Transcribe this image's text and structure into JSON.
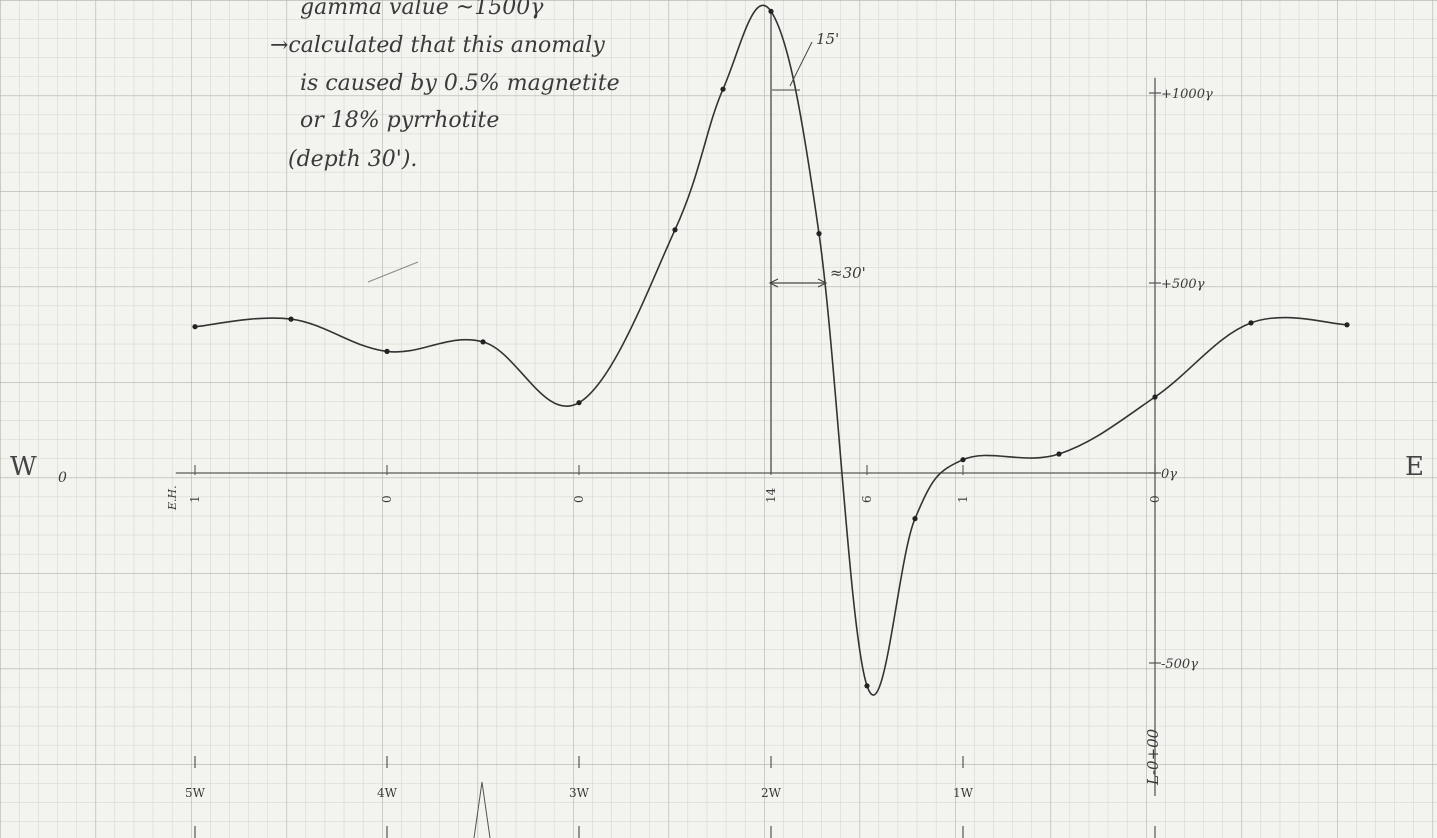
{
  "chart_data": {
    "type": "line",
    "direction_labels": {
      "west": "W",
      "east": "E",
      "origin_mark": "0"
    },
    "y_scale_labels": [
      "+1000γ",
      "+500γ",
      "0γ",
      "-500γ"
    ],
    "y_tick_values": [
      1000,
      500,
      0,
      -500
    ],
    "station_labels": [
      "5W",
      "4W",
      "3W",
      "2W",
      "1W"
    ],
    "station_positions": [
      -5,
      -4,
      -3,
      -2,
      -1
    ],
    "line_label": "L-0+00",
    "marker_label": "E.H.",
    "ylim": [
      -700,
      1250
    ],
    "xlim": [
      -6,
      2.5
    ],
    "axis_readings": [
      {
        "x": -5,
        "label": "1"
      },
      {
        "x": -4,
        "label": "0"
      },
      {
        "x": -3,
        "label": "0"
      },
      {
        "x": -2,
        "label": "14"
      },
      {
        "x": -1.5,
        "label": "6"
      },
      {
        "x": -1,
        "label": "1"
      },
      {
        "x": 0,
        "label": "0"
      }
    ],
    "series": [
      {
        "values": [
          {
            "x": -5.0,
            "y": 385
          },
          {
            "x": -4.5,
            "y": 405
          },
          {
            "x": -4.0,
            "y": 320
          },
          {
            "x": -3.5,
            "y": 345
          },
          {
            "x": -3.0,
            "y": 185
          },
          {
            "x": -2.5,
            "y": 640
          },
          {
            "x": -2.25,
            "y": 1010
          },
          {
            "x": -2.0,
            "y": 1215
          },
          {
            "x": -1.75,
            "y": 630
          },
          {
            "x": -1.5,
            "y": -560
          },
          {
            "x": -1.25,
            "y": -120
          },
          {
            "x": -1.0,
            "y": 35
          },
          {
            "x": -0.5,
            "y": 50
          },
          {
            "x": 0.0,
            "y": 200
          },
          {
            "x": 0.5,
            "y": 395
          },
          {
            "x": 1.0,
            "y": 390
          }
        ]
      }
    ],
    "annotations": {
      "note_lines": [
        "gamma value ~1500γ",
        "→calculated that this anomaly",
        "is caused by 0.5% magnetite",
        "or 18% pyrrhotite",
        "(depth 30')."
      ],
      "peak_half_label": "15'",
      "half_width_label": "≈30'"
    }
  }
}
